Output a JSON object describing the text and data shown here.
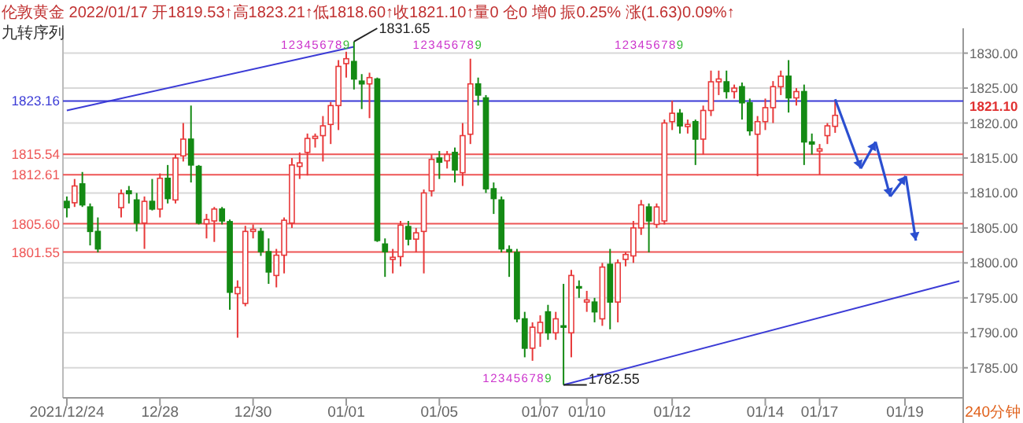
{
  "chart_data": {
    "type": "candlestick",
    "title": "伦敦黄金 2022/01/17 开1819.53↑高1823.21↑低1818.60↑收1821.10↑量0 仓0 增0 振0.25% 涨(1.63)0.09%↑",
    "subtitle": "九转序列",
    "categories": [
      "2021/12/24",
      null,
      null,
      null,
      null,
      null,
      null,
      null,
      null,
      null,
      null,
      null,
      "12/28",
      null,
      null,
      null,
      null,
      null,
      null,
      null,
      null,
      null,
      null,
      null,
      "12/30",
      null,
      null,
      null,
      null,
      null,
      null,
      null,
      null,
      null,
      null,
      null,
      "01/01",
      null,
      null,
      null,
      null,
      null,
      null,
      null,
      null,
      null,
      null,
      null,
      "01/05",
      null,
      null,
      null,
      null,
      null,
      null,
      null,
      null,
      null,
      null,
      null,
      null,
      "01/07",
      null,
      null,
      null,
      null,
      null,
      "01/10",
      null,
      null,
      null,
      null,
      null,
      null,
      null,
      null,
      null,
      null,
      "01/12",
      null,
      null,
      null,
      null,
      null,
      null,
      null,
      null,
      null,
      null,
      null,
      "01/14",
      null,
      null,
      null,
      null,
      null,
      null,
      "01/17",
      null,
      null,
      null,
      null,
      null,
      null,
      null,
      null,
      null,
      null,
      "01/19",
      null,
      null,
      null,
      null,
      null,
      null,
      null
    ],
    "ohlc": [
      [
        1808.8,
        1809.5,
        1806.5,
        1807.9
      ],
      [
        1808.6,
        1812,
        1808,
        1811
      ],
      [
        1811.3,
        1813,
        1808,
        1808.3
      ],
      [
        1808,
        1808.5,
        1802.5,
        1804.5
      ],
      [
        1804.5,
        1806.5,
        1801.5,
        1802
      ],
      null,
      null,
      [
        1807.9,
        1810.5,
        1806.5,
        1809.9
      ],
      [
        1810.3,
        1811,
        1808.5,
        1809.9
      ],
      [
        1809,
        1810,
        1804.5,
        1805.7
      ],
      [
        1805.7,
        1809.5,
        1802,
        1808.8
      ],
      [
        1808.8,
        1812,
        1807.5,
        1807.7
      ],
      [
        1807.7,
        1812.8,
        1806.5,
        1812.1
      ],
      [
        1812.1,
        1814,
        1808.5,
        1809.2
      ],
      [
        1809,
        1815.5,
        1808.5,
        1815
      ],
      [
        1815.3,
        1820,
        1814.5,
        1817.7
      ],
      [
        1817.7,
        1822.5,
        1811.5,
        1814
      ],
      [
        1813.8,
        1814,
        1805.5,
        1805.7
      ],
      [
        1805.6,
        1807,
        1803.5,
        1806.2
      ],
      [
        1806,
        1808,
        1803,
        1807.7
      ],
      [
        1807.7,
        1808,
        1805.5,
        1806
      ],
      [
        1805.9,
        1806.2,
        1793.3,
        1795.8
      ],
      [
        1795.6,
        1797.5,
        1789.3,
        1796.5
      ],
      [
        1794.2,
        1805.3,
        1793.8,
        1804.5
      ],
      [
        1804.5,
        1805.5,
        1803.5,
        1804.8
      ],
      [
        1804.5,
        1805,
        1801,
        1801.6
      ],
      [
        1801.6,
        1803.5,
        1797,
        1798.7
      ],
      [
        1798.2,
        1802,
        1796.5,
        1801.1
      ],
      [
        1801.1,
        1806.5,
        1798.5,
        1806.1
      ],
      [
        1805.7,
        1815,
        1805,
        1814
      ],
      [
        1813.8,
        1815.8,
        1812,
        1814.3
      ],
      [
        1815.8,
        1818.5,
        1812.5,
        1817.8
      ],
      [
        1817.8,
        1818.5,
        1816.5,
        1818.1
      ],
      [
        1818.2,
        1821,
        1814.5,
        1819.6
      ],
      [
        1819.8,
        1823,
        1817,
        1822.5
      ],
      [
        1822.5,
        1829,
        1819,
        1828.1
      ],
      [
        1828.5,
        1830.2,
        1826.5,
        1829.2
      ],
      [
        1828.8,
        1831.65,
        1824.8,
        1826.3
      ],
      [
        1826,
        1827,
        1822,
        1825.6
      ],
      [
        1825.6,
        1827.2,
        1820.7,
        1826.5
      ],
      [
        1826.3,
        1826.5,
        1803,
        1803.2
      ],
      [
        1802.7,
        1803.5,
        1798,
        1801.6
      ],
      [
        1800.5,
        1802,
        1798.5,
        1800.8
      ],
      [
        1800.9,
        1806,
        1799.5,
        1805.4
      ],
      [
        1805.2,
        1806,
        1802.5,
        1803.4
      ],
      [
        1803.4,
        1805,
        1801.5,
        1804.3
      ],
      [
        1804.5,
        1810.5,
        1798.5,
        1810
      ],
      [
        1810.3,
        1815.5,
        1809.5,
        1814.8
      ],
      [
        1815,
        1816,
        1812,
        1814.4
      ],
      [
        1814.6,
        1816,
        1813.5,
        1815.5
      ],
      [
        1815.8,
        1816.5,
        1811.5,
        1813.3
      ],
      [
        1812.9,
        1820,
        1811,
        1818.2
      ],
      [
        1818.4,
        1829.2,
        1817,
        1825.6
      ],
      [
        1825.6,
        1826.5,
        1822.5,
        1824
      ],
      [
        1823.6,
        1824,
        1810,
        1810.6
      ],
      [
        1810.6,
        1811.5,
        1807,
        1809.2
      ],
      [
        1809,
        1809.5,
        1801.5,
        1802
      ],
      [
        1801.9,
        1802.5,
        1798,
        1801.6
      ],
      [
        1801.5,
        1802,
        1791.5,
        1792
      ],
      [
        1792,
        1793,
        1786.5,
        1787.8
      ],
      [
        1787.8,
        1791.5,
        1786,
        1790.8
      ],
      [
        1790,
        1792.5,
        1788,
        1791.5
      ],
      [
        1793,
        1794,
        1789,
        1790
      ],
      [
        1790,
        1793,
        1789,
        1792
      ],
      [
        1791,
        1797,
        1782.55,
        1790.8
      ],
      [
        1790,
        1799,
        1786.5,
        1798.2
      ],
      [
        1796.6,
        1797.5,
        1795,
        1796.4
      ],
      [
        1794.4,
        1796,
        1793,
        1794.7
      ],
      [
        1794.4,
        1795,
        1791.5,
        1793
      ],
      [
        1792,
        1800,
        1791,
        1799.4
      ],
      [
        1799.8,
        1802,
        1790.5,
        1794.4
      ],
      [
        1794.4,
        1800.5,
        1791.5,
        1800
      ],
      [
        1800.5,
        1801.5,
        1799.5,
        1801.2
      ],
      [
        1801,
        1806,
        1800,
        1805
      ],
      [
        1805,
        1809,
        1804,
        1808.3
      ],
      [
        1808,
        1808.5,
        1801.5,
        1806
      ],
      [
        1805.5,
        1808.5,
        1805,
        1808
      ],
      [
        1806,
        1820.5,
        1805.5,
        1820
      ],
      [
        1820.2,
        1823.2,
        1819,
        1821.4
      ],
      [
        1821.4,
        1822,
        1818.5,
        1819.6
      ],
      [
        1819.5,
        1820.5,
        1818.5,
        1819.8
      ],
      [
        1820.2,
        1820.5,
        1814,
        1817.7
      ],
      [
        1817.7,
        1822.5,
        1815.5,
        1821.8
      ],
      [
        1821.8,
        1827.5,
        1821,
        1825.9
      ],
      [
        1825.9,
        1827.5,
        1824,
        1826.3
      ],
      [
        1825.9,
        1827.5,
        1823.5,
        1824.5
      ],
      [
        1824.5,
        1825.5,
        1823.5,
        1825
      ],
      [
        1825.2,
        1825.8,
        1820.5,
        1822.9
      ],
      [
        1822.9,
        1823.5,
        1818.2,
        1818.9
      ],
      [
        1818.4,
        1821,
        1812.4,
        1820.2
      ],
      [
        1820.2,
        1823.5,
        1819,
        1822.2
      ],
      [
        1822.2,
        1826,
        1820,
        1825.2
      ],
      [
        1825.2,
        1827.5,
        1824,
        1826.7
      ],
      [
        1826.7,
        1829,
        1821.5,
        1823.6
      ],
      [
        1823.6,
        1825,
        1822.5,
        1824.5
      ],
      [
        1824.5,
        1825.5,
        1814,
        1817.3
      ],
      [
        1817.3,
        1818.5,
        1815.5,
        1817
      ],
      [
        1816,
        1817,
        1812.6,
        1816.3
      ],
      [
        1818.2,
        1820,
        1817,
        1819.6
      ],
      [
        1819.53,
        1823.21,
        1818.6,
        1821.1
      ],
      null,
      null,
      null,
      null,
      null,
      null,
      null,
      null,
      null,
      null,
      null,
      null,
      null,
      null,
      null,
      null
    ],
    "series": [
      {
        "type": "line",
        "color": "#3b3bd6",
        "values": [
          1821.8,
          null,
          null,
          null,
          null,
          null,
          null,
          null,
          null,
          null,
          null,
          null,
          null,
          null,
          null,
          null,
          null,
          null,
          null,
          null,
          null,
          null,
          null,
          null,
          null,
          null,
          null,
          null,
          null,
          null,
          null,
          null,
          null,
          null,
          null,
          null,
          null,
          1830.9,
          null,
          null,
          null,
          null,
          null,
          null,
          null,
          null,
          null,
          null,
          null,
          null,
          null,
          null,
          null,
          null,
          null,
          null,
          null,
          null,
          null,
          null,
          null,
          null,
          null,
          null,
          null,
          null,
          null,
          null,
          null,
          null,
          null,
          null,
          null,
          null,
          null,
          null,
          null,
          null,
          null,
          null,
          null,
          null,
          null,
          null,
          null,
          null,
          null,
          null,
          null,
          null,
          null,
          null,
          null,
          null,
          null,
          null,
          null,
          null,
          null,
          null,
          null,
          null,
          null,
          null,
          null,
          null,
          null,
          null,
          null,
          null,
          null,
          null,
          null,
          null,
          null,
          null
        ]
      },
      {
        "type": "line",
        "color": "#3b3bd6",
        "values": [
          null,
          null,
          null,
          null,
          null,
          null,
          null,
          null,
          null,
          null,
          null,
          null,
          null,
          null,
          null,
          null,
          null,
          null,
          null,
          null,
          null,
          null,
          null,
          null,
          null,
          null,
          null,
          null,
          null,
          null,
          null,
          null,
          null,
          null,
          null,
          null,
          null,
          null,
          null,
          null,
          null,
          null,
          null,
          null,
          null,
          null,
          null,
          null,
          null,
          null,
          null,
          null,
          null,
          null,
          null,
          null,
          null,
          null,
          null,
          null,
          null,
          null,
          null,
          null,
          1782.55,
          null,
          null,
          null,
          null,
          null,
          null,
          null,
          null,
          null,
          null,
          null,
          null,
          null,
          null,
          null,
          null,
          null,
          null,
          null,
          null,
          null,
          null,
          null,
          null,
          null,
          null,
          null,
          null,
          null,
          null,
          null,
          null,
          null,
          null,
          null,
          null,
          null,
          null,
          null,
          null,
          null,
          null,
          null,
          null,
          null,
          null,
          null,
          null,
          null,
          null,
          1797.4
        ]
      }
    ],
    "ylim": [
      1780.7,
      1833.1
    ],
    "yticks": [
      {
        "value": 1785,
        "label": "1785.00"
      },
      {
        "value": 1790,
        "label": "1790.00"
      },
      {
        "value": 1795,
        "label": "1795.00"
      },
      {
        "value": 1800,
        "label": "1800.00"
      },
      {
        "value": 1805,
        "label": "1805.00"
      },
      {
        "value": 1810,
        "label": "1810.00"
      },
      {
        "value": 1815,
        "label": "1815.00"
      },
      {
        "value": 1820,
        "label": "1820.00"
      },
      {
        "value": 1825,
        "label": "1825.00"
      },
      {
        "value": 1830,
        "label": "1830.00"
      }
    ],
    "ref_lines": [
      {
        "axis": "y",
        "value": 1823.16,
        "label": "1823.16",
        "color": "#3b3bd6"
      },
      {
        "axis": "y",
        "value": 1815.54,
        "label": "1815.54",
        "color": "#ee5555"
      },
      {
        "axis": "y",
        "value": 1812.61,
        "label": "1812.61",
        "color": "#ee5555"
      },
      {
        "axis": "y",
        "value": 1805.6,
        "label": "1805.60",
        "color": "#ee5555"
      },
      {
        "axis": "y",
        "value": 1801.55,
        "label": "1801.55",
        "color": "#ee5555"
      }
    ],
    "annotations": [
      "123456789",
      "123456789",
      "123456789",
      "123456789",
      "1831.65",
      "1782.55",
      "1821.10",
      "240分钟"
    ],
    "grid": "y"
  }
}
